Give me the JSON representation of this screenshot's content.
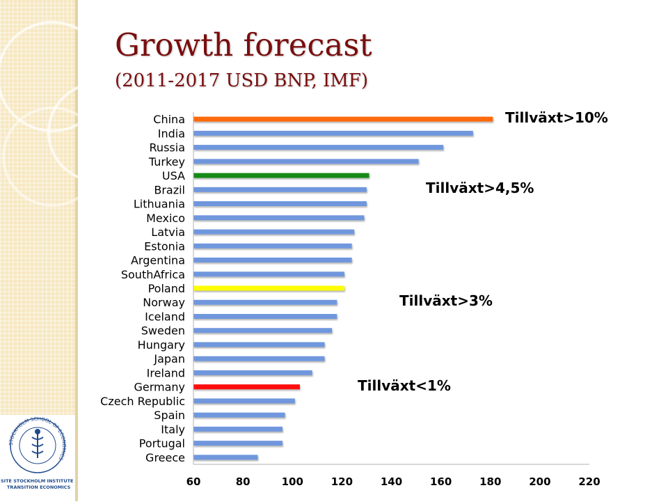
{
  "slide": {
    "title": "Growth forecast",
    "subtitle": "(2011-2017 USD BNP, IMF)"
  },
  "logo": {
    "ring_text": "STOCKHOLM SCHOOL OF ECONOMICS",
    "caption_line1": "SITE STOCKHOLM INSTITUTE OF",
    "caption_line2": "TRANSITION ECONOMICS"
  },
  "chart_data": {
    "type": "bar",
    "orientation": "horizontal",
    "categories": [
      "China",
      "India",
      "Russia",
      "Turkey",
      "USA",
      "Brazil",
      "Lithuania",
      "Mexico",
      "Latvia",
      "Estonia",
      "Argentina",
      "SouthAfrica",
      "Poland",
      "Norway",
      "Iceland",
      "Sweden",
      "Hungary",
      "Japan",
      "Ireland",
      "Germany",
      "Czech Republic",
      "Spain",
      "Italy",
      "Portugal",
      "Greece"
    ],
    "values": [
      181,
      173,
      161,
      151,
      131,
      130,
      130,
      129,
      125,
      124,
      124,
      121,
      121,
      118,
      118,
      116,
      113,
      113,
      108,
      103,
      101,
      97,
      96,
      96,
      86
    ],
    "colors": [
      "#ff6a10",
      "#6f97dd",
      "#6f97dd",
      "#6f97dd",
      "#158a15",
      "#6f97dd",
      "#6f97dd",
      "#6f97dd",
      "#6f97dd",
      "#6f97dd",
      "#6f97dd",
      "#6f97dd",
      "#ffff00",
      "#6f97dd",
      "#6f97dd",
      "#6f97dd",
      "#6f97dd",
      "#6f97dd",
      "#6f97dd",
      "#ff0d0d",
      "#6f97dd",
      "#6f97dd",
      "#6f97dd",
      "#6f97dd",
      "#6f97dd"
    ],
    "xlim": [
      60,
      220
    ],
    "xticks": [
      60,
      80,
      100,
      120,
      140,
      160,
      180,
      200,
      220
    ],
    "grid": false,
    "annotations": [
      {
        "text": "Tillväxt>10%",
        "near_category": "China"
      },
      {
        "text": "Tillväxt>4,5%",
        "near_category": "Brazil"
      },
      {
        "text": "Tillväxt>3%",
        "near_category": "Norway"
      },
      {
        "text": "Tillväxt<1%",
        "near_category": "Germany"
      }
    ]
  }
}
